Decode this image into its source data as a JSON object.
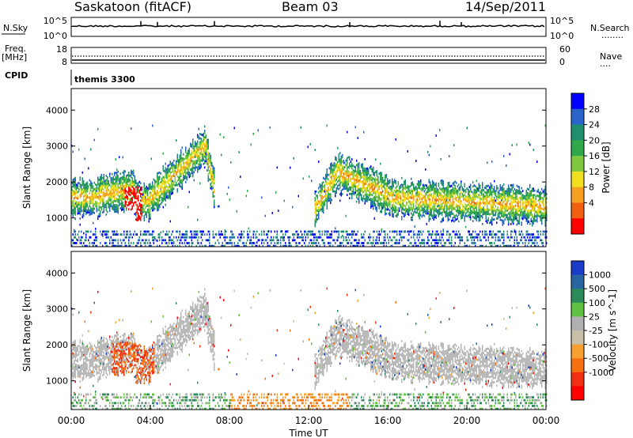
{
  "header": {
    "site": "Saskatoon (fitACF)",
    "beam": "Beam 03",
    "date": "14/Sep/2011"
  },
  "nsky_panel": {
    "left_label": "N.Sky",
    "left_ticks": [
      "10^5",
      "10^0"
    ],
    "right_ticks": [
      "10^5",
      "10^0"
    ],
    "right_label": "N.Search",
    "right_legend": "........"
  },
  "freq_panel": {
    "left_label_1": "Freq.",
    "left_label_2": "[MHz]",
    "left_ticks": [
      "18",
      "8"
    ],
    "right_ticks": [
      "60",
      "0"
    ],
    "right_label": "Nave",
    "right_legend": "...."
  },
  "cpid": {
    "label": "CPID",
    "value": "themis 3300"
  },
  "chart_data": [
    {
      "type": "heatmap",
      "ylabel": "Slant Range [km]",
      "yticks": [
        "4000",
        "3000",
        "2000",
        "1000"
      ],
      "ylim": [
        200,
        4600
      ],
      "colorbar": {
        "label": "Power [dB]",
        "ticks": [
          "28",
          "24",
          "20",
          "16",
          "12",
          "8",
          "4"
        ],
        "colors": [
          "#0000ff",
          "#2a64c8",
          "#1f8f6e",
          "#2ea84a",
          "#80c840",
          "#f0e020",
          "#f5a020",
          "#f06010",
          "#ff0000"
        ]
      },
      "features": [
        {
          "name": "main band",
          "color": "#2a7fb0"
        },
        {
          "name": "strong echo 03:00",
          "color": "#ff0000"
        }
      ]
    },
    {
      "type": "heatmap",
      "ylabel": "Slant Range [km]",
      "xlabel": "Time UT",
      "yticks": [
        "4000",
        "3000",
        "2000",
        "1000"
      ],
      "xticks": [
        "00:00",
        "04:00",
        "08:00",
        "12:00",
        "16:00",
        "20:00",
        "00:00"
      ],
      "ylim": [
        200,
        4600
      ],
      "colorbar": {
        "label": "Velocity [m s^-1]",
        "ticks": [
          "1000",
          "500",
          "100",
          "25",
          "-25",
          "-100",
          "-500",
          "-1000"
        ],
        "colors": [
          "#1a3cc8",
          "#2864a0",
          "#2a8a5a",
          "#60c040",
          "#b0b0b0",
          "#c8c0a8",
          "#f5a030",
          "#f57010",
          "#f03010",
          "#ff0000"
        ]
      },
      "ground_scatter_color": "#b8b8b8"
    }
  ]
}
